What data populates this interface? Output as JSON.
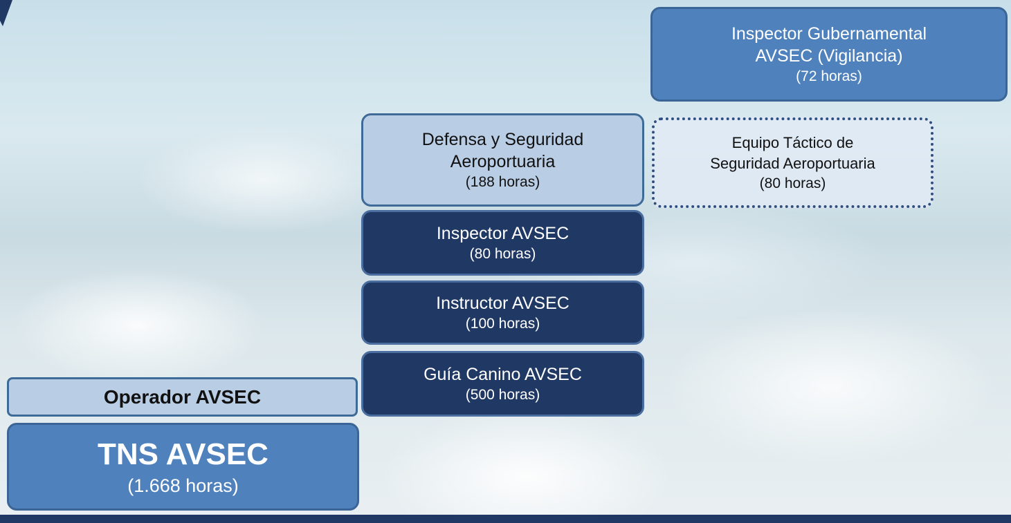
{
  "nodes": [
    {
      "lines": [
        "Inspector Gubernamental",
        "AVSEC (Vigilancia)"
      ],
      "hours": "(72 horas)"
    },
    {
      "lines": [
        "Defensa y Seguridad",
        "Aeroportuaria"
      ],
      "hours": "(188 horas)"
    },
    {
      "lines": [
        "Equipo Táctico de",
        "Seguridad Aeroportuaria"
      ],
      "hours": "(80 horas)"
    },
    {
      "lines": [
        "Inspector AVSEC"
      ],
      "hours": "(80 horas)"
    },
    {
      "lines": [
        "Instructor AVSEC"
      ],
      "hours": "(100 horas)"
    },
    {
      "lines": [
        "Guía Canino AVSEC"
      ],
      "hours": "(500 horas)"
    },
    {
      "lines": [
        "Operador AVSEC"
      ]
    },
    {
      "lines": [
        "TNS AVSEC"
      ],
      "hours": "(1.668 horas)"
    }
  ]
}
